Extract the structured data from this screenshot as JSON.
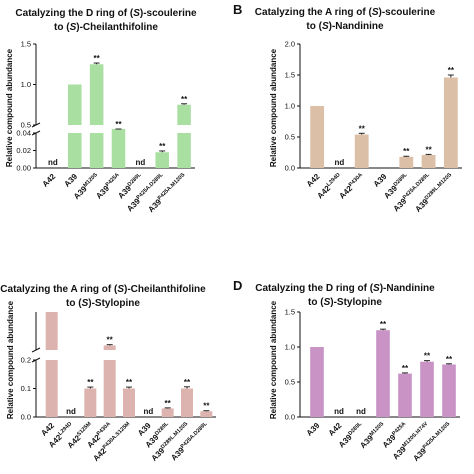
{
  "chart_data": [
    {
      "type": "bar",
      "panel_label": "",
      "title_lines": [
        [
          [
            "Catalyzing the D ring of (",
            ""
          ],
          [
            "S",
            "i"
          ],
          [
            ")-scoulerine",
            ""
          ]
        ],
        [
          [
            "to (",
            ""
          ],
          [
            "S",
            "i"
          ],
          [
            ")-Cheilanthifoline",
            ""
          ]
        ]
      ],
      "ylabel": "Relative compound abundance",
      "color": "#aadfa2",
      "axis_break": true,
      "lower_range": [
        0,
        0.04
      ],
      "lower_ticks": [
        "0.00",
        "0.02",
        "0.04"
      ],
      "upper_range": [
        0.5,
        1.5
      ],
      "upper_ticks": [
        "0.5",
        "1.0",
        "1.5"
      ],
      "categories": [
        {
          "base": "A42",
          "sup": ""
        },
        {
          "base": "A39",
          "sup": ""
        },
        {
          "base": "A39",
          "sup": "M120S"
        },
        {
          "base": "A39",
          "sup": "P425A"
        },
        {
          "base": "A39",
          "sup": "D289L"
        },
        {
          "base": "A39",
          "sup": "P425A.D289L"
        },
        {
          "base": "A39",
          "sup": "P425A.M120S"
        }
      ],
      "values": [
        0,
        1.0,
        1.25,
        0.45,
        0,
        0.018,
        0.75
      ],
      "errors": [
        0,
        0,
        0.015,
        0.012,
        0,
        0.0015,
        0.012
      ],
      "annotations": [
        "nd",
        "",
        "**",
        "**",
        "nd",
        "**",
        "**"
      ]
    },
    {
      "type": "bar",
      "panel_label": "B",
      "title_lines": [
        [
          [
            "Catalyzing the A ring of (",
            ""
          ],
          [
            "S",
            "i"
          ],
          [
            ")-scoulerine",
            ""
          ]
        ],
        [
          [
            "to (",
            ""
          ],
          [
            "S",
            "i"
          ],
          [
            ")-Nandinine",
            ""
          ]
        ]
      ],
      "ylabel": "Relative compound abundance",
      "color": "#dbbfa6",
      "axis_break": false,
      "ylim": [
        0,
        2.0
      ],
      "yticks": [
        "0.0",
        "0.5",
        "1.0",
        "1.5",
        "2.0"
      ],
      "categories": [
        {
          "base": "A42",
          "sup": ""
        },
        {
          "base": "A42",
          "sup": "L294D"
        },
        {
          "base": "A42",
          "sup": "P430A"
        },
        {
          "base": "A39",
          "sup": ""
        },
        {
          "base": "A39",
          "sup": "D289L"
        },
        {
          "base": "A39",
          "sup": "P425A.D289L"
        },
        {
          "base": "A39",
          "sup": "D289L.M120S"
        }
      ],
      "values": [
        1.0,
        0,
        0.54,
        0,
        0.18,
        0.21,
        1.46
      ],
      "errors": [
        0,
        0,
        0.02,
        0,
        0.01,
        0.01,
        0.04
      ],
      "annotations": [
        "",
        "nd",
        "**",
        "",
        "**",
        "**",
        "**"
      ]
    },
    {
      "type": "bar",
      "panel_label": "",
      "title_lines": [
        [
          [
            "Catalyzing the A ring of (",
            ""
          ],
          [
            "S",
            "i"
          ],
          [
            ")-Cheilanthifoline",
            ""
          ]
        ],
        [
          [
            "to (",
            ""
          ],
          [
            "S",
            "i"
          ],
          [
            ")-Stylopine",
            ""
          ]
        ]
      ],
      "ylabel": "Relative compound abundance",
      "color": "#dcb3ae",
      "axis_break": true,
      "lower_range": [
        0,
        0.2
      ],
      "lower_ticks": [
        "0.0",
        "0.1",
        "0.2"
      ],
      "upper_range": [
        0.5,
        1.0
      ],
      "upper_ticks": [],
      "categories": [
        {
          "base": "A42",
          "sup": ""
        },
        {
          "base": "A42",
          "sup": "L294D"
        },
        {
          "base": "A42",
          "sup": "S125M"
        },
        {
          "base": "A42",
          "sup": "P430A"
        },
        {
          "base": "A42",
          "sup": "P430A.S125M"
        },
        {
          "base": "A39",
          "sup": ""
        },
        {
          "base": "A39",
          "sup": "D289L"
        },
        {
          "base": "A39",
          "sup": "D289L.M120S"
        },
        {
          "base": "A39",
          "sup": "P425A.D289L"
        }
      ],
      "values": [
        1.0,
        0,
        0.1,
        0.56,
        0.1,
        0,
        0.03,
        0.1,
        0.02
      ],
      "errors": [
        0,
        0,
        0.005,
        0.01,
        0.005,
        0,
        0.002,
        0.006,
        0.002
      ],
      "annotations": [
        "",
        "nd",
        "**",
        "**",
        "**",
        "nd",
        "**",
        "**",
        "**"
      ]
    },
    {
      "type": "bar",
      "panel_label": "D",
      "title_lines": [
        [
          [
            "Catalyzing the D ring of (",
            ""
          ],
          [
            "S",
            "i"
          ],
          [
            ")-Nandinine",
            ""
          ]
        ],
        [
          [
            "to (",
            ""
          ],
          [
            "S",
            "i"
          ],
          [
            ")-Stylopine",
            ""
          ]
        ]
      ],
      "ylabel": "Relative compound abundance",
      "color": "#c994c5",
      "axis_break": false,
      "ylim": [
        0,
        1.5
      ],
      "yticks": [
        "0.0",
        "0.5",
        "1.0",
        "1.5"
      ],
      "categories": [
        {
          "base": "A39",
          "sup": ""
        },
        {
          "base": "A42",
          "sup": ""
        },
        {
          "base": "A39",
          "sup": "D289L"
        },
        {
          "base": "A39",
          "sup": "M120S"
        },
        {
          "base": "A39",
          "sup": "P425A"
        },
        {
          "base": "A39",
          "sup": "M120S.I474V"
        },
        {
          "base": "A39",
          "sup": "P425A.M120S"
        }
      ],
      "values": [
        1.0,
        0,
        0,
        1.24,
        0.62,
        0.79,
        0.75
      ],
      "errors": [
        0,
        0,
        0,
        0.015,
        0.01,
        0.015,
        0.01
      ],
      "annotations": [
        "",
        "nd",
        "nd",
        "**",
        "**",
        "**",
        "**"
      ]
    }
  ]
}
